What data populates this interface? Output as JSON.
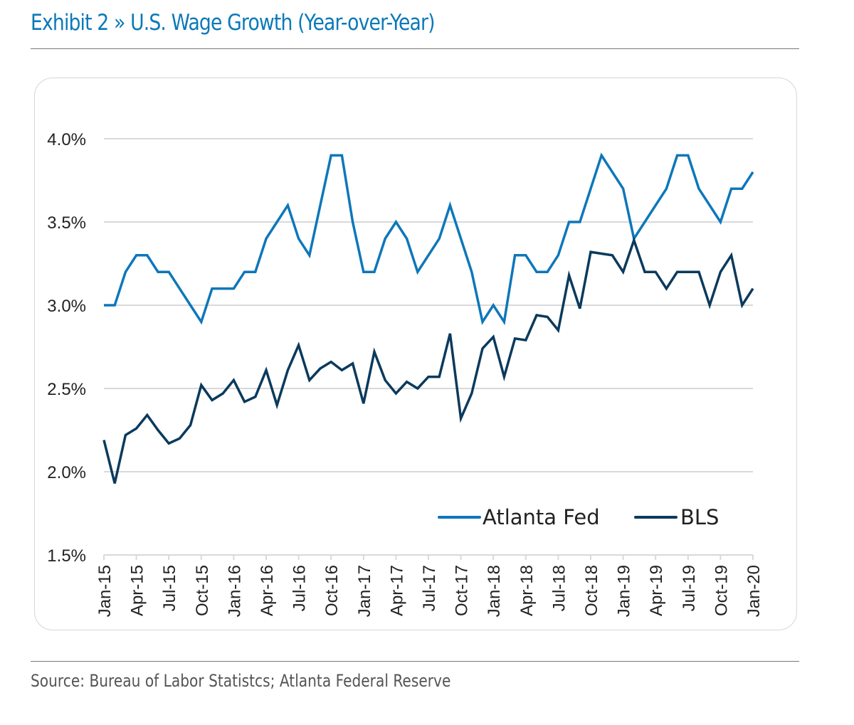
{
  "header": {
    "title": "Exhibit 2 » U.S. Wage Growth (Year-over-Year)"
  },
  "footer": {
    "source": "Source: Bureau of Labor Statistcs; Atlanta Federal Reserve"
  },
  "colors": {
    "title": "#0a79b8",
    "atlanta_fed": "#0d77ba",
    "bls": "#0b3a5c",
    "grid": "#d9d9d9",
    "axis_text": "#222222"
  },
  "chart_data": {
    "type": "line",
    "title": "U.S. Wage Growth (Year-over-Year)",
    "xlabel": "",
    "ylabel": "",
    "ylim": [
      1.5,
      4.0
    ],
    "yticks": [
      1.5,
      2.0,
      2.5,
      3.0,
      3.5,
      4.0
    ],
    "ytick_labels": [
      "1.5%",
      "2.0%",
      "2.5%",
      "3.0%",
      "3.5%",
      "4.0%"
    ],
    "grid": true,
    "legend_position": "bottom-right",
    "x_start": "Jan-15",
    "x_frequency": "monthly",
    "x_count": 61,
    "xtick_labels": [
      "Jan-15",
      "Apr-15",
      "Jul-15",
      "Oct-15",
      "Jan-16",
      "Apr-16",
      "Jul-16",
      "Oct-16",
      "Jan-17",
      "Apr-17",
      "Jul-17",
      "Oct-17",
      "Jan-18",
      "Apr-18",
      "Jul-18",
      "Oct-18",
      "Jan-19",
      "Apr-19",
      "Jul-19",
      "Oct-19",
      "Jan-20"
    ],
    "xtick_every": 3,
    "series": [
      {
        "name": "Atlanta Fed",
        "color": "#0d77ba",
        "values": [
          3.0,
          3.0,
          3.2,
          3.3,
          3.3,
          3.2,
          3.2,
          3.1,
          3.0,
          2.9,
          3.1,
          3.1,
          3.1,
          3.2,
          3.2,
          3.4,
          3.5,
          3.6,
          3.4,
          3.3,
          3.6,
          3.9,
          3.9,
          3.5,
          3.2,
          3.2,
          3.4,
          3.5,
          3.4,
          3.2,
          3.3,
          3.4,
          3.6,
          3.4,
          3.2,
          2.9,
          3.0,
          2.9,
          3.3,
          3.3,
          3.2,
          3.2,
          3.3,
          3.5,
          3.5,
          3.7,
          3.9,
          3.8,
          3.7,
          3.4,
          3.5,
          3.6,
          3.7,
          3.9,
          3.9,
          3.7,
          3.6,
          3.5,
          3.7,
          3.7,
          3.8
        ]
      },
      {
        "name": "BLS",
        "color": "#0b3a5c",
        "values": [
          2.19,
          1.93,
          2.22,
          2.26,
          2.34,
          2.25,
          2.17,
          2.2,
          2.28,
          2.52,
          2.43,
          2.47,
          2.55,
          2.42,
          2.45,
          2.61,
          2.4,
          2.61,
          2.76,
          2.55,
          2.62,
          2.66,
          2.61,
          2.65,
          2.41,
          2.72,
          2.55,
          2.47,
          2.54,
          2.5,
          2.57,
          2.57,
          2.83,
          2.32,
          2.47,
          2.74,
          2.81,
          2.57,
          2.8,
          2.79,
          2.94,
          2.93,
          2.85,
          3.18,
          2.98,
          3.32,
          3.31,
          3.3,
          3.2,
          3.39,
          3.2,
          3.2,
          3.1,
          3.2,
          3.2,
          3.2,
          3.0,
          3.2,
          3.3,
          3.0,
          3.1
        ]
      }
    ]
  }
}
